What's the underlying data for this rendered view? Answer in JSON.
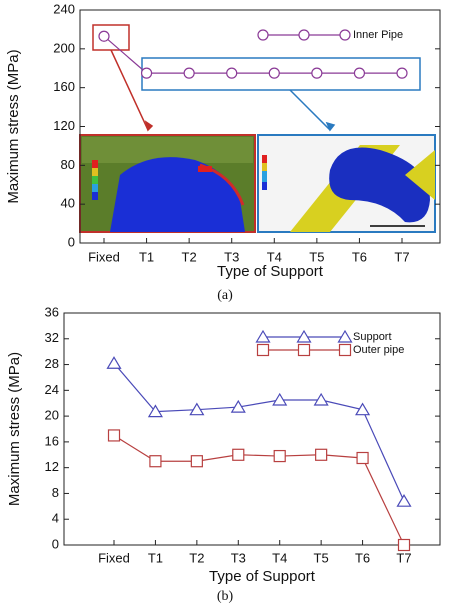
{
  "chart_data": [
    {
      "type": "line",
      "label": "(a)",
      "x_label": "Type of Support",
      "y_label": "Maximum stress (MPa)",
      "categories": [
        "Fixed",
        "T1",
        "T2",
        "T3",
        "T4",
        "T5",
        "T6",
        "T7"
      ],
      "series": [
        {
          "name": "Inner Pipe",
          "color": "#8a3a96",
          "marker": "circle",
          "values": [
            213,
            175,
            175,
            175,
            175,
            175,
            175,
            175
          ]
        }
      ],
      "ylim": [
        0,
        240
      ],
      "yticks": [
        0,
        40,
        80,
        120,
        160,
        200,
        240
      ],
      "grid": false
    },
    {
      "type": "line",
      "label": "(b)",
      "x_label": "Type of Support",
      "y_label": "Maximum stress (MPa)",
      "categories": [
        "Fixed",
        "T1",
        "T2",
        "T3",
        "T4",
        "T5",
        "T6",
        "T7"
      ],
      "series": [
        {
          "name": "Support",
          "color": "#4a4ab8",
          "marker": "triangle",
          "values": [
            28.2,
            20.7,
            21,
            21.4,
            22.5,
            22.5,
            21,
            6.8
          ]
        },
        {
          "name": "Outer pipe",
          "color": "#b84040",
          "marker": "square",
          "values": [
            17,
            13,
            13,
            14,
            13.8,
            14,
            13.5,
            0
          ]
        }
      ],
      "ylim": [
        0,
        36
      ],
      "yticks": [
        0,
        4,
        8,
        12,
        16,
        20,
        24,
        28,
        32,
        36
      ],
      "grid": false
    }
  ]
}
